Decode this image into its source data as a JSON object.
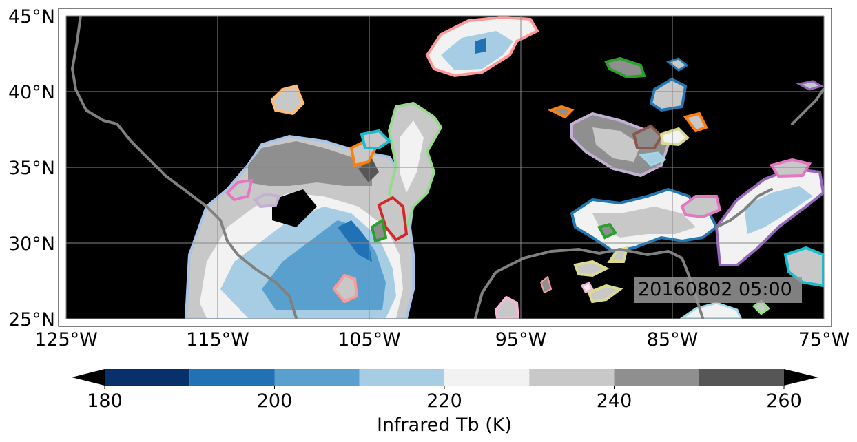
{
  "timestamp": "20160802 05:00",
  "chart_data": {
    "type": "heatmap",
    "title": "",
    "description_units": "brightness temperature",
    "x_axis": {
      "range": [
        -125,
        -75
      ],
      "ticks": [
        -125,
        -115,
        -105,
        -95,
        -85,
        -75
      ],
      "tick_labels": [
        "125°W",
        "115°W",
        "105°W",
        "95°W",
        "85°W",
        "75°W"
      ]
    },
    "y_axis": {
      "range": [
        25,
        45
      ],
      "ticks": [
        25,
        30,
        35,
        40,
        45
      ],
      "tick_labels": [
        "25°N",
        "30°N",
        "35°N",
        "40°N",
        "45°N"
      ]
    },
    "grid": true,
    "colorbar": {
      "label": "Infrared Tb (K)",
      "range": [
        180,
        260
      ],
      "ticks": [
        180,
        200,
        220,
        240,
        260
      ],
      "levels": [
        180,
        190,
        200,
        210,
        220,
        230,
        240,
        250,
        260
      ],
      "colors": [
        "#08306b",
        "#2171b5",
        "#5aa0cf",
        "#a6cde4",
        "#f2f2f2",
        "#c8c8c8",
        "#8f8f8f",
        "#565656"
      ],
      "extend": "both",
      "under_color": "#000000",
      "over_color": "#000000"
    },
    "background_color": "#000000",
    "coastline_color": "#808080"
  },
  "colors": {
    "grid": "#888888"
  }
}
